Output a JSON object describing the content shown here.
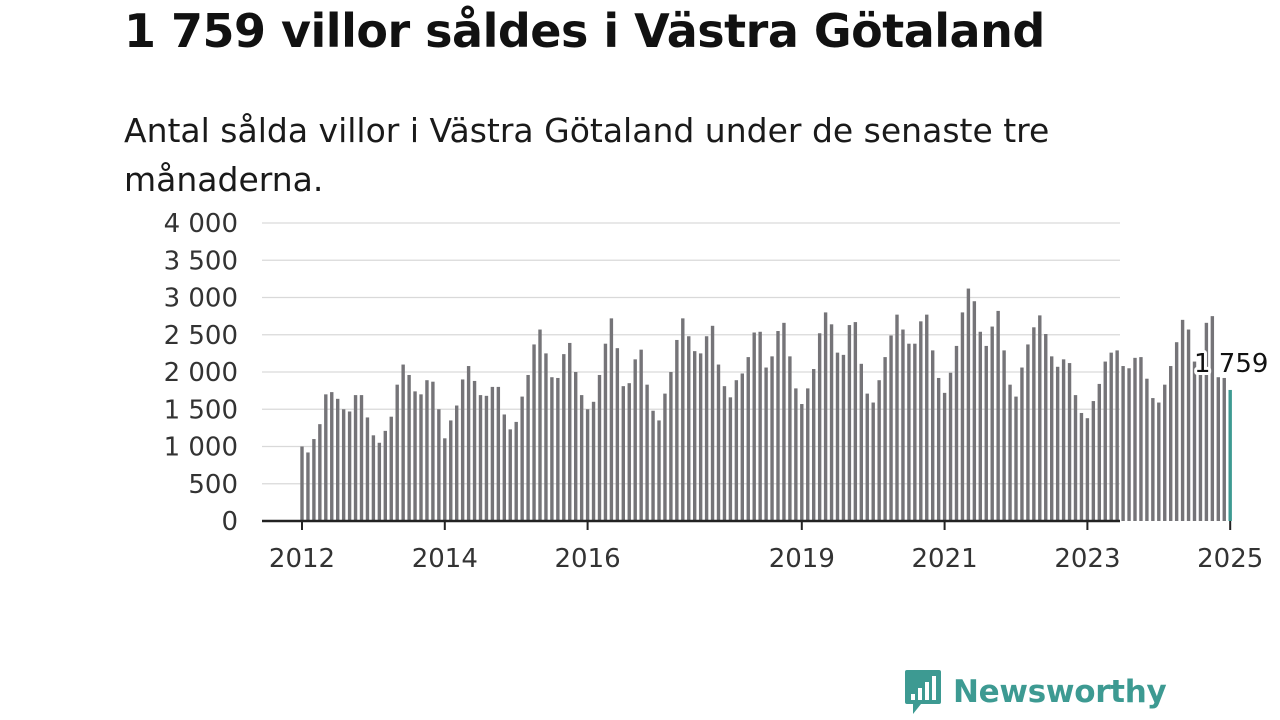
{
  "header": {
    "title": "1 759 villor såldes i Västra Götaland",
    "subtitle": "Antal sålda villor i Västra Götaland under de senaste tre månaderna."
  },
  "brand": {
    "name": "Newsworthy",
    "color": "#3d9a92",
    "icon": "newsworthy-logo-icon"
  },
  "chart_data": {
    "type": "bar",
    "x_start": "2012-01",
    "x_end": "2025-01",
    "x_ticks": [
      "2012",
      "2014",
      "2016",
      "2019",
      "2021",
      "2023",
      "2025"
    ],
    "y_ticks": [
      "0",
      "500",
      "1 000",
      "1 500",
      "2 000",
      "2 500",
      "3 000",
      "3 500",
      "4 000"
    ],
    "ylim": [
      0,
      4000
    ],
    "grid": true,
    "bar_color": "#757478",
    "highlight_color": "#3d9a92",
    "highlight_label": "1 759",
    "values": [
      1000,
      920,
      1100,
      1300,
      1700,
      1730,
      1640,
      1500,
      1470,
      1690,
      1690,
      1390,
      1150,
      1050,
      1210,
      1400,
      1830,
      2100,
      1960,
      1740,
      1700,
      1890,
      1870,
      1500,
      1110,
      1350,
      1550,
      1900,
      2080,
      1880,
      1690,
      1680,
      1800,
      1800,
      1430,
      1230,
      1330,
      1670,
      1960,
      2370,
      2570,
      2250,
      1930,
      1920,
      2240,
      2390,
      2000,
      1690,
      1500,
      1600,
      1960,
      2380,
      2720,
      2320,
      1810,
      1850,
      2170,
      2300,
      1830,
      1480,
      1350,
      1710,
      2000,
      2430,
      2720,
      2480,
      2280,
      2250,
      2480,
      2620,
      2100,
      1810,
      1660,
      1890,
      1980,
      2200,
      2530,
      2540,
      2060,
      2210,
      2550,
      2660,
      2210,
      1780,
      1570,
      1780,
      2040,
      2520,
      2800,
      2640,
      2260,
      2230,
      2630,
      2670,
      2110,
      1710,
      1590,
      1890,
      2200,
      2490,
      2770,
      2570,
      2380,
      2380,
      2680,
      2770,
      2290,
      1920,
      1720,
      1990,
      2350,
      2800,
      3120,
      2950,
      2540,
      2350,
      2610,
      2820,
      2290,
      1830,
      1670,
      2060,
      2370,
      2600,
      2760,
      2510,
      2210,
      2070,
      2170,
      2120,
      1690,
      1450,
      1380,
      1610,
      1840,
      2140,
      2260,
      2290,
      2080,
      2050,
      2190,
      2200,
      1910,
      1650,
      1590,
      1830,
      2080,
      2400,
      2700,
      2570,
      2140,
      2260,
      2660,
      2750,
      1930,
      1920,
      1759
    ]
  }
}
